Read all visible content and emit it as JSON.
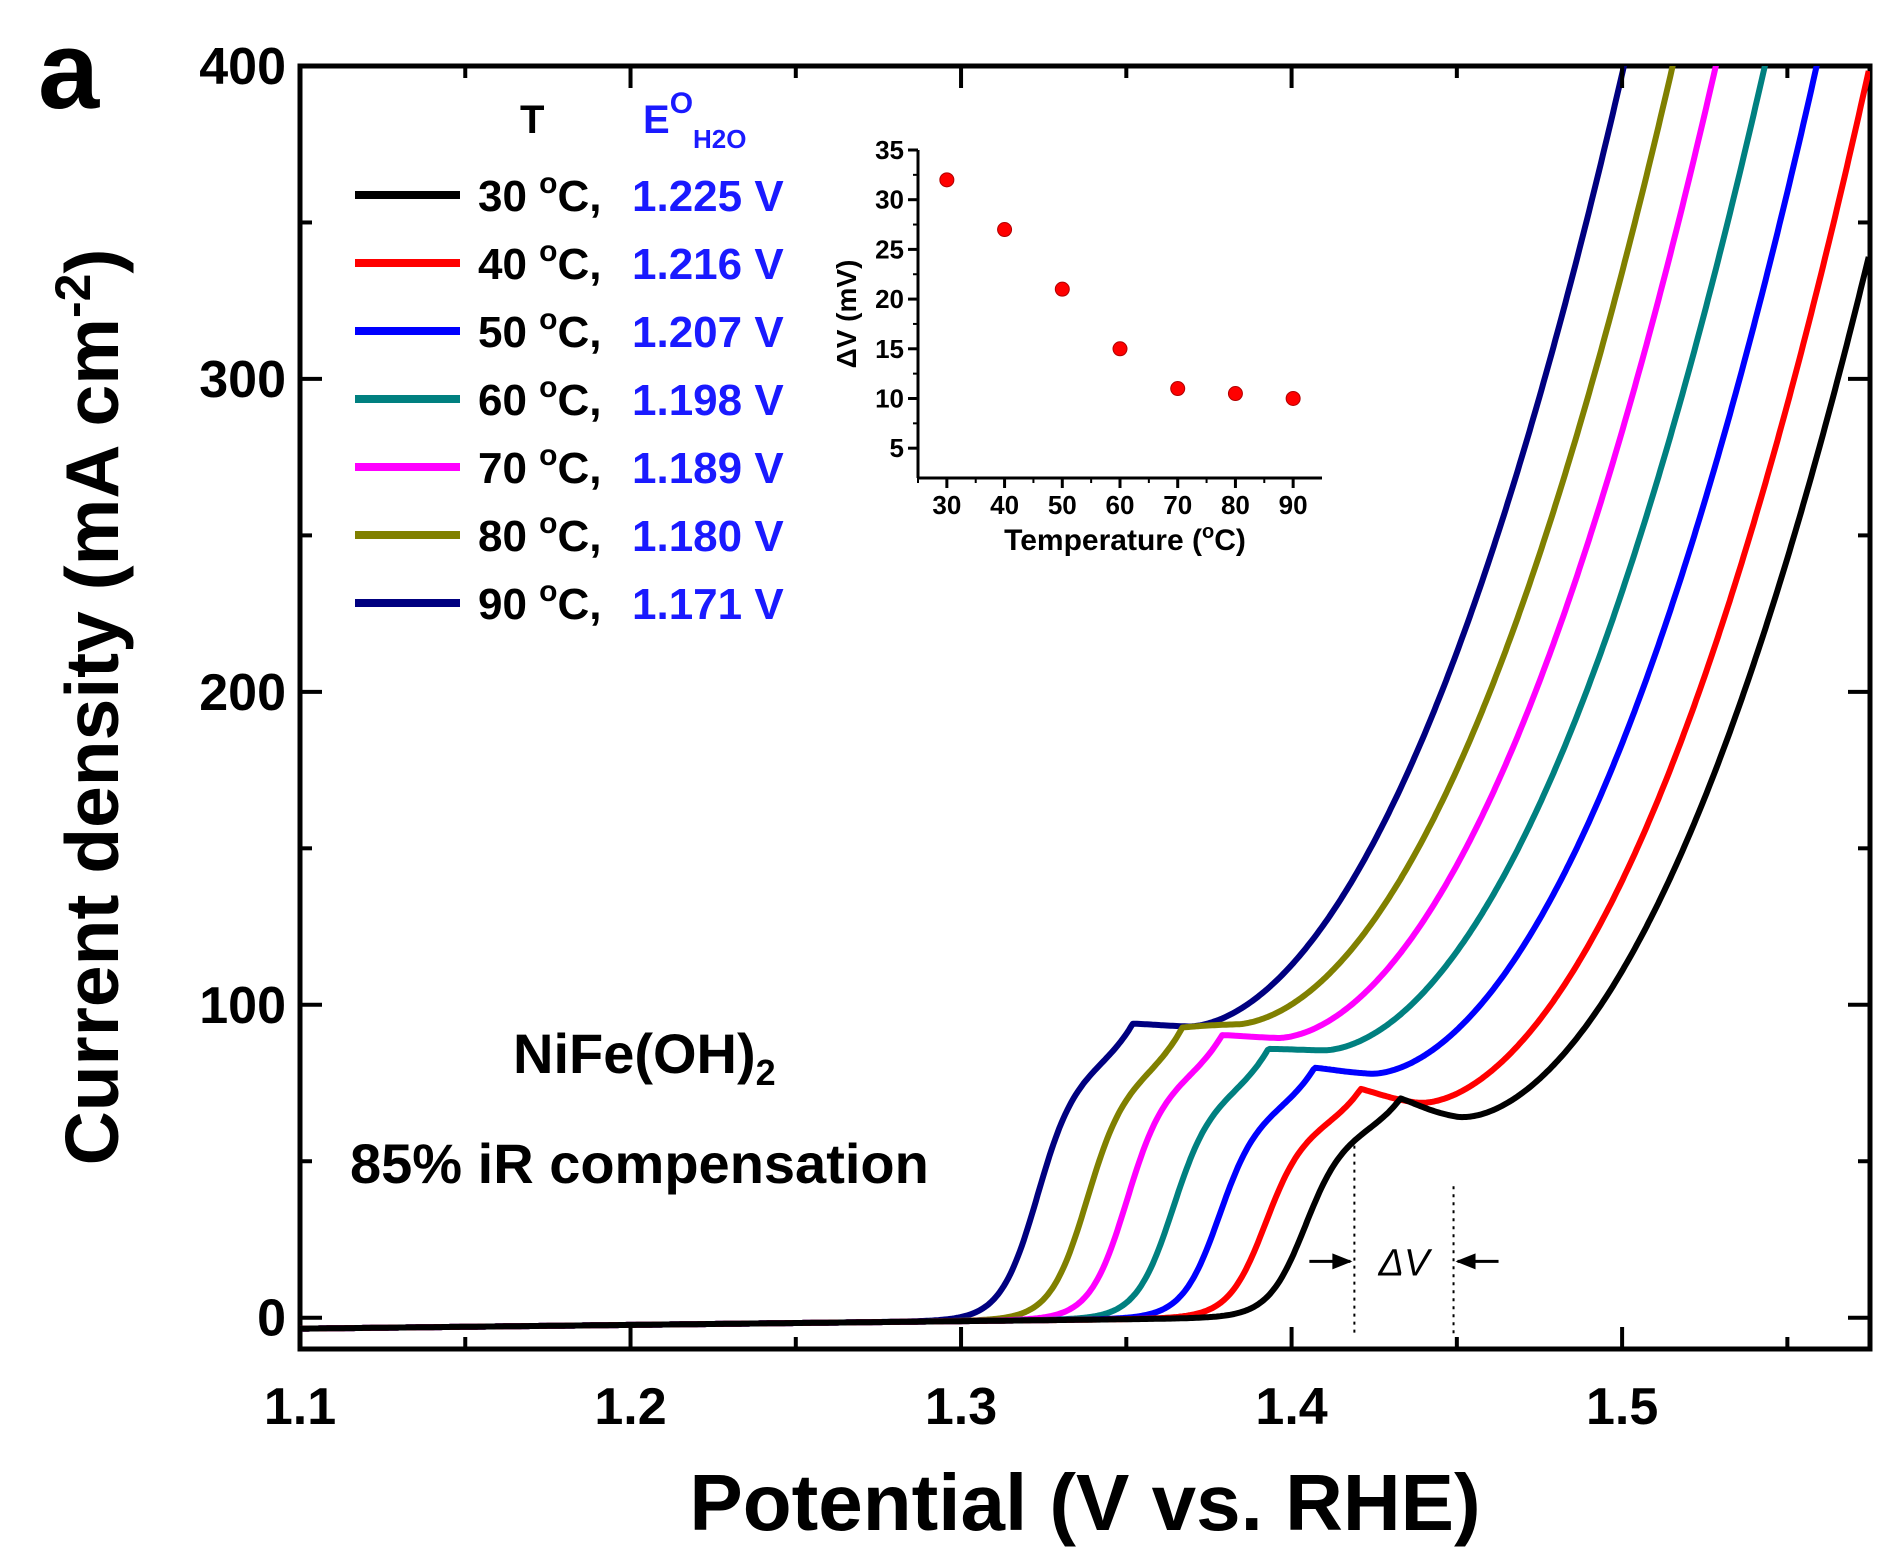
{
  "panel_label": "a",
  "chart_data": [
    {
      "type": "line",
      "xlabel": "Potential (V vs. RHE)",
      "ylabel_main": "Current density (mA cm",
      "ylabel_sup": "-2",
      "ylabel_close": ")",
      "xlim": [
        1.1,
        1.575
      ],
      "ylim": [
        -10,
        400
      ],
      "x_ticks": [
        1.1,
        1.2,
        1.3,
        1.4,
        1.5
      ],
      "x_tick_labels": [
        "1.1",
        "1.2",
        "1.3",
        "1.4",
        "1.5"
      ],
      "x_minor_ticks": [
        1.15,
        1.25,
        1.35,
        1.45,
        1.55
      ],
      "y_ticks": [
        0,
        100,
        200,
        300,
        400
      ],
      "y_tick_labels": [
        "0",
        "100",
        "200",
        "300",
        "400"
      ],
      "y_minor_ticks": [
        50,
        150,
        250,
        350
      ],
      "legend_header_T": "T",
      "legend_header_E_main": "E",
      "legend_header_E_sup": "O",
      "legend_header_E_sub": "H2O",
      "series": [
        {
          "name": "30 °C",
          "temp": "30",
          "e0": "1.225 V",
          "color": "#000000",
          "shift": 0.0,
          "bump": 55,
          "valley": 42
        },
        {
          "name": "40 °C",
          "temp": "40",
          "e0": "1.216 V",
          "color": "#ff0000",
          "shift": 0.012,
          "bump": 57,
          "valley": 47
        },
        {
          "name": "50 °C",
          "temp": "50",
          "e0": "1.207 V",
          "color": "#0000ff",
          "shift": 0.026,
          "bump": 62,
          "valley": 57
        },
        {
          "name": "60 °C",
          "temp": "60",
          "e0": "1.198 V",
          "color": "#008080",
          "shift": 0.04,
          "bump": 67,
          "valley": 65
        },
        {
          "name": "70 °C",
          "temp": "70",
          "e0": "1.189 V",
          "color": "#ff00ff",
          "shift": 0.054,
          "bump": 72,
          "valley": 69
        },
        {
          "name": "80 °C",
          "temp": "80",
          "e0": "1.180 V",
          "color": "#808000",
          "shift": 0.066,
          "bump": 73,
          "valley": 74
        },
        {
          "name": "90 °C",
          "temp": "90",
          "e0": "1.171 V",
          "color": "#000080",
          "shift": 0.081,
          "bump": 76,
          "valley": 73
        }
      ],
      "sample_label_main": "NiFe(OH)",
      "sample_label_sub": "2",
      "compensation_label": "85% iR compensation",
      "delta_v_annotation": "ΔV",
      "delta_v_range": [
        1.419,
        1.449
      ]
    },
    {
      "type": "scatter",
      "xlabel_main": "Temperature (",
      "xlabel_sup": "o",
      "xlabel_close": "C)",
      "ylabel": "ΔV  (mV)",
      "xlim": [
        25,
        95
      ],
      "ylim": [
        2,
        35
      ],
      "x_ticks": [
        30,
        40,
        50,
        60,
        70,
        80,
        90
      ],
      "x_tick_labels": [
        "30",
        "40",
        "50",
        "60",
        "70",
        "80",
        "90"
      ],
      "y_ticks": [
        5,
        10,
        15,
        20,
        25,
        30,
        35
      ],
      "y_tick_labels": [
        "5",
        "10",
        "15",
        "20",
        "25",
        "30",
        "35"
      ],
      "x": [
        30,
        40,
        50,
        60,
        70,
        80,
        90
      ],
      "y": [
        32,
        27,
        21,
        15,
        11,
        10.5,
        10
      ],
      "marker_color": "#ff0000"
    }
  ]
}
